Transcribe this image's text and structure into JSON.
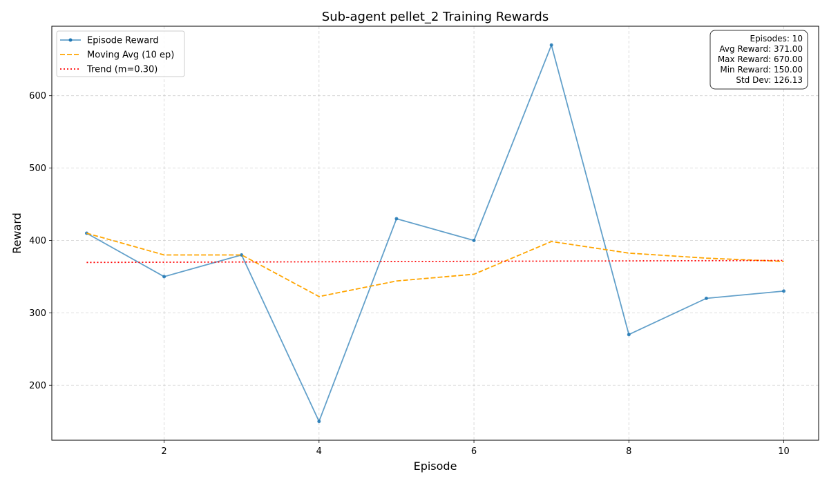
{
  "chart_data": {
    "type": "line",
    "title": "Sub-agent pellet_2 Training Rewards",
    "xlabel": "Episode",
    "ylabel": "Reward",
    "xlim": [
      0.55,
      10.45
    ],
    "ylim": [
      124,
      696
    ],
    "xticks": [
      2,
      4,
      6,
      8,
      10
    ],
    "yticks": [
      200,
      300,
      400,
      500,
      600
    ],
    "grid": true,
    "legend_position": "top-left",
    "x": [
      1,
      2,
      3,
      4,
      5,
      6,
      7,
      8,
      9,
      10
    ],
    "series": [
      {
        "name": "Episode Reward",
        "style": "solid-markers",
        "color": "#1f77b4",
        "values": [
          410,
          350,
          380,
          150,
          430,
          400,
          670,
          270,
          320,
          330
        ]
      },
      {
        "name": "Moving Avg (10 ep)",
        "style": "dashed",
        "color": "#ffa500",
        "values": [
          410,
          380,
          380,
          322.5,
          344,
          353.33,
          398.57,
          382.5,
          375.56,
          371
        ]
      },
      {
        "name": "Trend (m=0.30)",
        "style": "dotted",
        "color": "#ff0000",
        "values": [
          369.65,
          369.95,
          370.25,
          370.55,
          370.85,
          371.15,
          371.45,
          371.75,
          372.05,
          372.35
        ]
      }
    ],
    "stats": [
      "Episodes: 10",
      "Avg Reward: 371.00",
      "Max Reward: 670.00",
      "Min Reward: 150.00",
      "Std Dev: 126.13"
    ]
  }
}
